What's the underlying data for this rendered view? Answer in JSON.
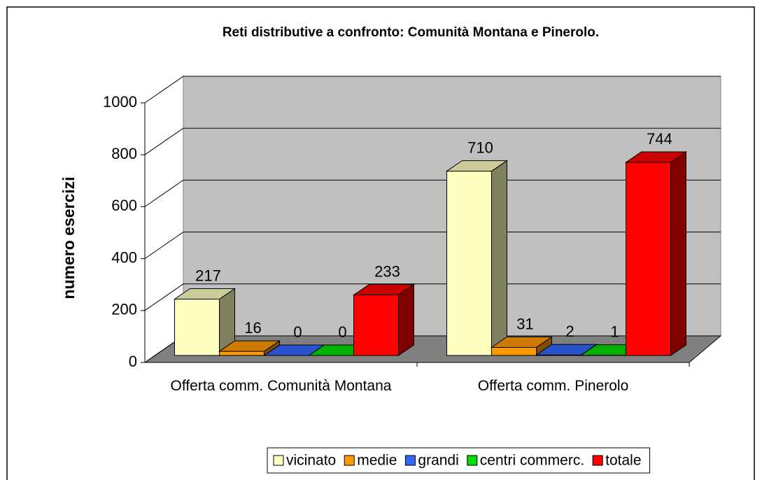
{
  "chart_data": {
    "type": "bar3d",
    "title": "Reti distributive a confronto: Comunità Montana e Pinerolo.",
    "y_label": "numero esercizi",
    "categories": [
      "Offerta comm. Comunità Montana",
      "Offerta comm. Pinerolo"
    ],
    "series": [
      {
        "name": "vicinato",
        "color": "#ffffc0",
        "values": [
          217,
          710
        ]
      },
      {
        "name": "medie",
        "color": "#ff9900",
        "values": [
          16,
          31
        ]
      },
      {
        "name": "grandi",
        "color": "#3366ff",
        "values": [
          0,
          2
        ]
      },
      {
        "name": "centri commerc.",
        "color": "#00dd00",
        "values": [
          0,
          1
        ]
      },
      {
        "name": "totale",
        "color": "#ff0000",
        "values": [
          233,
          744
        ]
      }
    ],
    "ylim": [
      0,
      1000
    ],
    "yticks": [
      0,
      200,
      400,
      600,
      800,
      1000
    ],
    "grid": true,
    "legend": "bottom"
  }
}
